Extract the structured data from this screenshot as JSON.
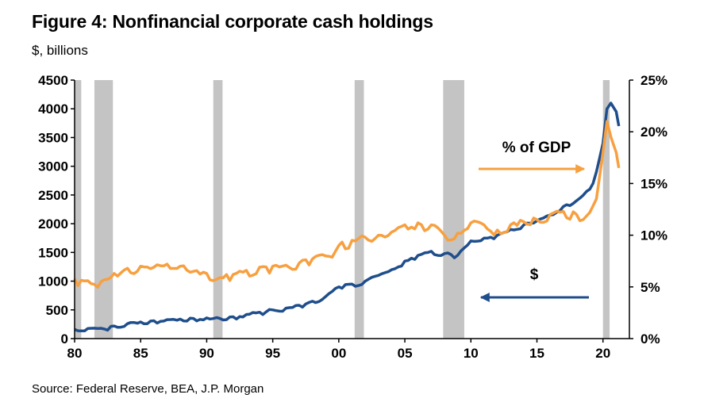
{
  "header": {
    "title": "Figure 4: Nonfinancial corporate cash holdings",
    "subtitle": "$, billions"
  },
  "footer": {
    "source": "Source: Federal Reserve, BEA, J.P. Morgan"
  },
  "colors": {
    "dollars": "#1f4e8c",
    "gdp": "#f7a040",
    "recession": "#c4c4c4",
    "axis": "#000000"
  },
  "chart_data": {
    "type": "line",
    "x_range": [
      1980,
      2022
    ],
    "x_ticks": [
      1980,
      1985,
      1990,
      1995,
      2000,
      2005,
      2010,
      2015,
      2020
    ],
    "x_tick_labels": [
      "80",
      "85",
      "90",
      "95",
      "00",
      "05",
      "10",
      "15",
      "20"
    ],
    "y_left": {
      "range": [
        0,
        4500
      ],
      "ticks": [
        0,
        500,
        1000,
        1500,
        2000,
        2500,
        3000,
        3500,
        4000,
        4500
      ],
      "tick_labels": [
        "0",
        "500",
        "1000",
        "1500",
        "2000",
        "2500",
        "3000",
        "3500",
        "4000",
        "4500"
      ]
    },
    "y_right": {
      "range": [
        0,
        25
      ],
      "ticks": [
        0,
        5,
        10,
        15,
        20,
        25
      ],
      "tick_labels": [
        "0%",
        "5%",
        "10%",
        "15%",
        "20%",
        "25%"
      ]
    },
    "recessions": [
      [
        1980.0,
        1980.5
      ],
      [
        1981.5,
        1982.9
      ],
      [
        1990.5,
        1991.2
      ],
      [
        2001.2,
        2001.9
      ],
      [
        2007.9,
        2009.5
      ],
      [
        2020.0,
        2020.5
      ]
    ],
    "series": [
      {
        "name": "$",
        "axis": "left",
        "x": [
          1980,
          1981,
          1982,
          1983,
          1984,
          1985,
          1986,
          1987,
          1988,
          1989,
          1990,
          1991,
          1992,
          1993,
          1994,
          1995,
          1996,
          1997,
          1998,
          1999,
          2000,
          2001,
          2002,
          2003,
          2004,
          2005,
          2006,
          2007,
          2008,
          2009,
          2010,
          2011,
          2012,
          2013,
          2014,
          2015,
          2016,
          2017,
          2018,
          2019,
          2019.5,
          2020,
          2020.3,
          2020.6,
          2021,
          2021.2
        ],
        "values": [
          160,
          175,
          180,
          220,
          260,
          290,
          310,
          330,
          340,
          350,
          360,
          350,
          380,
          420,
          460,
          500,
          530,
          580,
          650,
          730,
          900,
          950,
          1000,
          1100,
          1200,
          1350,
          1450,
          1520,
          1480,
          1450,
          1700,
          1750,
          1800,
          1900,
          1980,
          2050,
          2150,
          2300,
          2400,
          2600,
          2900,
          3400,
          4000,
          4100,
          3950,
          3700
        ]
      },
      {
        "name": "% of GDP",
        "axis": "right",
        "x": [
          1980,
          1981,
          1982,
          1983,
          1984,
          1985,
          1986,
          1987,
          1988,
          1989,
          1990,
          1991,
          1992,
          1993,
          1994,
          1995,
          1996,
          1997,
          1998,
          1999,
          2000,
          2001,
          2002,
          2003,
          2004,
          2005,
          2006,
          2007,
          2008,
          2009,
          2010,
          2011,
          2012,
          2013,
          2014,
          2015,
          2016,
          2017,
          2018,
          2019,
          2019.5,
          2020,
          2020.3,
          2020.6,
          2021,
          2021.2
        ],
        "values": [
          5.8,
          5.6,
          5.5,
          6.3,
          6.8,
          7.0,
          6.9,
          7.2,
          7.0,
          6.5,
          6.3,
          5.9,
          6.2,
          6.6,
          6.9,
          7.0,
          7.1,
          7.3,
          7.7,
          8.0,
          9.0,
          9.5,
          9.8,
          10.0,
          10.3,
          11.0,
          11.2,
          11.0,
          10.0,
          10.2,
          11.2,
          11.0,
          10.5,
          11.0,
          11.3,
          11.5,
          12.0,
          12.3,
          12.0,
          12.2,
          13.5,
          18.0,
          21.0,
          19.5,
          18.0,
          16.5
        ]
      }
    ],
    "annotations": [
      {
        "text": "% of GDP",
        "series": "% of GDP",
        "arrow": "right"
      },
      {
        "text": "$",
        "series": "$",
        "arrow": "left"
      }
    ]
  }
}
